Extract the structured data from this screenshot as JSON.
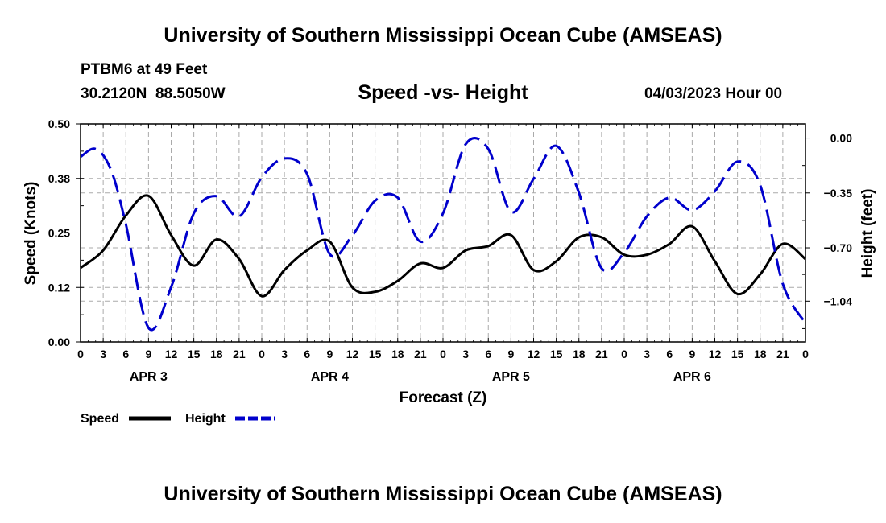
{
  "header": {
    "title": "University of Southern Mississippi Ocean Cube (AMSEAS)",
    "station_line": "PTBM6 at 49 Feet",
    "coords": "30.2120N  88.5050W",
    "chart_title": "Speed -vs- Height",
    "datetime": "04/03/2023 Hour 00"
  },
  "footer": {
    "title": "University of Southern Mississippi Ocean Cube (AMSEAS)"
  },
  "chart_data": {
    "type": "line",
    "title": "Speed -vs- Height",
    "xlabel": "Forecast (Z)",
    "ylabel": "Speed (Knots)",
    "y2label": "Height (feet)",
    "x_range_hours": [
      0,
      96
    ],
    "ylim": [
      0,
      0.5
    ],
    "y2lim": [
      -1.3,
      0.09
    ],
    "yticks": [
      "0.00",
      "0.12",
      "0.25",
      "0.38",
      "0.50"
    ],
    "ytick_values": [
      0,
      0.125,
      0.25,
      0.375,
      0.5
    ],
    "y2ticks": [
      "0.00",
      "−0.35",
      "−0.70",
      "−1.04"
    ],
    "y2tick_values": [
      0,
      -0.35,
      -0.7,
      -1.04
    ],
    "xtick_labels": [
      "0",
      "3",
      "6",
      "9",
      "12",
      "15",
      "18",
      "21",
      "0",
      "3",
      "6",
      "9",
      "12",
      "15",
      "18",
      "21",
      "0",
      "3",
      "6",
      "9",
      "12",
      "15",
      "18",
      "21",
      "0",
      "3",
      "6",
      "9",
      "12",
      "15",
      "18",
      "21",
      "0"
    ],
    "day_labels": [
      "APR 3",
      "APR 4",
      "APR 5",
      "APR 6"
    ],
    "grid": true,
    "legend": "bottom-left",
    "series": [
      {
        "name": "Speed",
        "axis": "left",
        "color": "#000000",
        "style": "solid",
        "x": [
          0,
          3,
          6,
          9,
          12,
          15,
          18,
          21,
          24,
          27,
          30,
          33,
          36,
          39,
          42,
          45,
          48,
          51,
          54,
          57,
          60,
          63,
          66,
          69,
          72,
          75,
          78,
          81,
          84,
          87,
          90,
          93,
          96
        ],
        "values": [
          0.17,
          0.21,
          0.29,
          0.335,
          0.245,
          0.175,
          0.235,
          0.19,
          0.105,
          0.165,
          0.21,
          0.23,
          0.125,
          0.115,
          0.14,
          0.18,
          0.17,
          0.21,
          0.22,
          0.245,
          0.165,
          0.185,
          0.24,
          0.24,
          0.2,
          0.2,
          0.225,
          0.265,
          0.185,
          0.11,
          0.155,
          0.225,
          0.19
        ]
      },
      {
        "name": "Height",
        "axis": "right",
        "color": "#0000cc",
        "style": "dashed",
        "x": [
          0,
          2,
          4,
          6,
          9,
          12,
          15,
          18,
          21,
          24,
          27,
          30,
          33,
          36,
          39,
          42,
          45,
          48,
          51,
          54,
          57,
          60,
          63,
          66,
          69,
          72,
          75,
          78,
          81,
          84,
          87,
          90,
          93,
          96
        ],
        "values": [
          -0.12,
          -0.07,
          -0.2,
          -0.55,
          -1.21,
          -0.95,
          -0.48,
          -0.37,
          -0.5,
          -0.25,
          -0.13,
          -0.23,
          -0.74,
          -0.62,
          -0.4,
          -0.38,
          -0.66,
          -0.48,
          -0.04,
          -0.07,
          -0.47,
          -0.26,
          -0.05,
          -0.35,
          -0.83,
          -0.73,
          -0.5,
          -0.38,
          -0.46,
          -0.34,
          -0.15,
          -0.3,
          -0.93,
          -1.18
        ]
      }
    ]
  }
}
